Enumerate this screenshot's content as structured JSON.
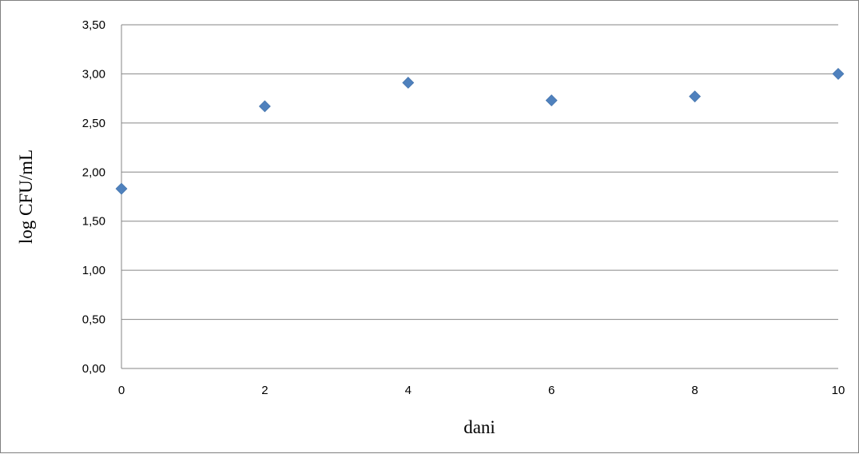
{
  "chart_data": {
    "type": "scatter",
    "title": "",
    "xlabel": "dani",
    "ylabel": "log CFU/mL",
    "xlim": [
      0,
      10
    ],
    "ylim": [
      0,
      3.5
    ],
    "xticks": [
      "0",
      "2",
      "4",
      "6",
      "8",
      "10"
    ],
    "yticks": [
      "0,00",
      "0,50",
      "1,00",
      "1,50",
      "2,00",
      "2,50",
      "3,00",
      "3,50"
    ],
    "grid": "horizontal",
    "legend": "none",
    "marker": "diamond",
    "series": [
      {
        "color": "#4f81bd",
        "x": [
          0,
          2,
          4,
          6,
          8,
          10
        ],
        "y": [
          1.83,
          2.67,
          2.91,
          2.73,
          2.77,
          3.0
        ]
      }
    ]
  }
}
